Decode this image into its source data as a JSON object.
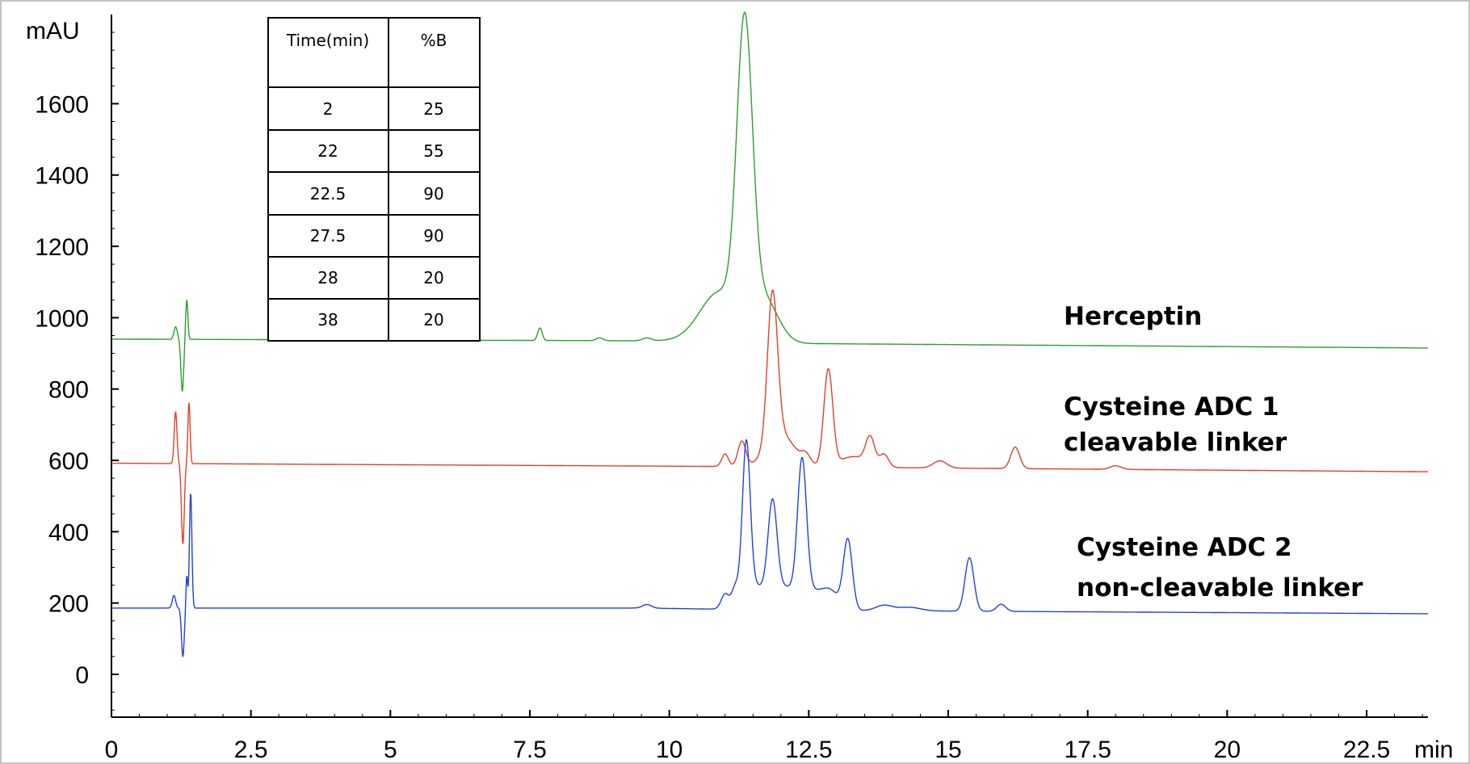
{
  "chart_data": {
    "type": "line",
    "xlabel": "min",
    "ylabel": "mAU",
    "xlim": [
      0,
      23.6
    ],
    "ylim": [
      -120,
      1850
    ],
    "x_ticks": [
      0,
      2.5,
      5,
      7.5,
      10,
      12.5,
      15,
      17.5,
      20,
      22.5
    ],
    "x_tick_labels": [
      "0",
      "2.5",
      "5",
      "7.5",
      "10",
      "12.5",
      "15",
      "17.5",
      "20",
      "22.5"
    ],
    "y_ticks": [
      0,
      200,
      400,
      600,
      800,
      1000,
      1200,
      1400,
      1600
    ],
    "y_tick_labels": [
      "0",
      "200",
      "400",
      "600",
      "800",
      "1000",
      "1200",
      "1400",
      "1600"
    ],
    "grid": false,
    "series": [
      {
        "name": "Herceptin",
        "label_lines": [
          "Herceptin"
        ],
        "color": "#2e9e2e",
        "baseline": [
          [
            0,
            940
          ],
          [
            10,
            935
          ],
          [
            12,
            928
          ],
          [
            23.6,
            915
          ]
        ],
        "peaks": [
          [
            1.15,
            35,
            0.03
          ],
          [
            1.27,
            -145,
            0.025
          ],
          [
            1.35,
            110,
            0.02
          ],
          [
            7.68,
            35,
            0.04
          ],
          [
            8.75,
            8,
            0.06
          ],
          [
            9.6,
            8,
            0.08
          ],
          [
            10.9,
            140,
            0.35
          ],
          [
            11.35,
            820,
            0.14
          ],
          [
            11.7,
            120,
            0.25
          ]
        ]
      },
      {
        "name": "Cysteine ADC 1 cleavable linker",
        "label_lines": [
          "Cysteine ADC 1",
          "cleavable linker"
        ],
        "color": "#e0402a",
        "baseline": [
          [
            0,
            592
          ],
          [
            12,
            582
          ],
          [
            23.6,
            568
          ]
        ],
        "peaks": [
          [
            1.15,
            145,
            0.025
          ],
          [
            1.28,
            -225,
            0.025
          ],
          [
            1.39,
            170,
            0.02
          ],
          [
            11.0,
            35,
            0.06
          ],
          [
            11.3,
            70,
            0.07
          ],
          [
            11.85,
            420,
            0.09
          ],
          [
            12.0,
            90,
            0.25
          ],
          [
            12.45,
            25,
            0.08
          ],
          [
            12.85,
            270,
            0.08
          ],
          [
            13.3,
            30,
            0.25
          ],
          [
            13.6,
            75,
            0.08
          ],
          [
            13.85,
            35,
            0.08
          ],
          [
            14.85,
            20,
            0.12
          ],
          [
            16.2,
            60,
            0.08
          ],
          [
            18.0,
            10,
            0.1
          ]
        ]
      },
      {
        "name": "Cysteine ADC 2 non-cleavable linker",
        "label_lines": [
          "Cysteine ADC 2",
          "non-cleavable linker"
        ],
        "color": "#2440e0",
        "baseline": [
          [
            0,
            186
          ],
          [
            9.5,
            186
          ],
          [
            12,
            180
          ],
          [
            23.6,
            170
          ]
        ],
        "peaks": [
          [
            1.12,
            35,
            0.03
          ],
          [
            1.28,
            -135,
            0.025
          ],
          [
            1.35,
            90,
            0.015
          ],
          [
            1.42,
            320,
            0.022
          ],
          [
            9.6,
            10,
            0.08
          ],
          [
            11.0,
            40,
            0.07
          ],
          [
            11.18,
            45,
            0.06
          ],
          [
            11.38,
            420,
            0.07
          ],
          [
            11.48,
            60,
            0.2
          ],
          [
            11.85,
            250,
            0.08
          ],
          [
            12.0,
            60,
            0.25
          ],
          [
            12.38,
            370,
            0.08
          ],
          [
            12.55,
            50,
            0.25
          ],
          [
            12.9,
            40,
            0.15
          ],
          [
            13.2,
            195,
            0.08
          ],
          [
            13.85,
            15,
            0.15
          ],
          [
            14.3,
            10,
            0.2
          ],
          [
            15.38,
            150,
            0.08
          ],
          [
            15.95,
            20,
            0.08
          ]
        ]
      }
    ],
    "gradient_table": {
      "headers": [
        "Time(min)",
        "%B"
      ],
      "rows": [
        [
          "2",
          "25"
        ],
        [
          "22",
          "55"
        ],
        [
          "22.5",
          "90"
        ],
        [
          "27.5",
          "90"
        ],
        [
          "28",
          "20"
        ],
        [
          "38",
          "20"
        ]
      ]
    }
  }
}
